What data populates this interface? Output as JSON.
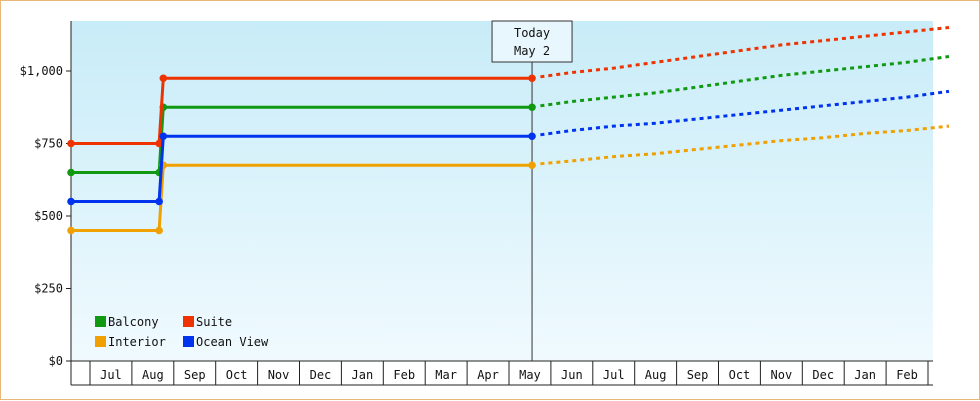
{
  "chart_data": {
    "type": "line",
    "title": "",
    "xlabel": "",
    "ylabel": "",
    "ylim": [
      0,
      1150
    ],
    "y_ticks": [
      {
        "value": 0,
        "label": "$0"
      },
      {
        "value": 250,
        "label": "$250"
      },
      {
        "value": 500,
        "label": "$500"
      },
      {
        "value": 750,
        "label": "$750"
      },
      {
        "value": 1000,
        "label": "$1,000"
      }
    ],
    "x_months": [
      "Jul",
      "Aug",
      "Sep",
      "Oct",
      "Nov",
      "Dec",
      "Jan",
      "Feb",
      "Mar",
      "Apr",
      "May",
      "Jun",
      "Jul",
      "Aug",
      "Sep",
      "Oct",
      "Nov",
      "Dec",
      "Jan",
      "Feb"
    ],
    "today": {
      "line1": "Today",
      "line2": "May 2",
      "x": 10.05
    },
    "x_range": [
      -0.45,
      20.0
    ],
    "legend": {
      "placement": "bottom-left"
    },
    "background": {
      "top": "#c8ecf8",
      "bottom": "#f0fafe"
    },
    "series": [
      {
        "name": "Balcony",
        "color": "#119911",
        "history": [
          [
            -0.45,
            650
          ],
          [
            1.15,
            650
          ],
          [
            1.25,
            875
          ],
          [
            10.05,
            875
          ]
        ],
        "markers": [
          [
            -0.45,
            650
          ],
          [
            1.15,
            650
          ],
          [
            1.25,
            875
          ],
          [
            10.05,
            875
          ]
        ],
        "forecast": [
          [
            10.25,
            880
          ],
          [
            11,
            895
          ],
          [
            12,
            910
          ],
          [
            13,
            925
          ],
          [
            14,
            945
          ],
          [
            15,
            965
          ],
          [
            16,
            985
          ],
          [
            17,
            1000
          ],
          [
            18,
            1015
          ],
          [
            19,
            1030
          ],
          [
            20,
            1050
          ]
        ]
      },
      {
        "name": "Suite",
        "color": "#ee3300",
        "history": [
          [
            -0.45,
            750
          ],
          [
            1.15,
            750
          ],
          [
            1.25,
            975
          ],
          [
            10.05,
            975
          ]
        ],
        "markers": [
          [
            -0.45,
            750
          ],
          [
            1.15,
            750
          ],
          [
            1.25,
            975
          ],
          [
            10.05,
            975
          ]
        ],
        "forecast": [
          [
            10.25,
            980
          ],
          [
            11,
            995
          ],
          [
            12,
            1010
          ],
          [
            13,
            1030
          ],
          [
            14,
            1050
          ],
          [
            15,
            1070
          ],
          [
            16,
            1090
          ],
          [
            17,
            1105
          ],
          [
            18,
            1120
          ],
          [
            19,
            1135
          ],
          [
            20,
            1150
          ]
        ]
      },
      {
        "name": "Interior",
        "color": "#f0a000",
        "history": [
          [
            -0.45,
            450
          ],
          [
            1.15,
            450
          ],
          [
            1.25,
            675
          ],
          [
            10.05,
            675
          ]
        ],
        "markers": [
          [
            -0.45,
            450
          ],
          [
            1.15,
            450
          ],
          [
            1.25,
            675
          ],
          [
            10.05,
            675
          ]
        ],
        "forecast": [
          [
            10.25,
            680
          ],
          [
            11,
            690
          ],
          [
            12,
            705
          ],
          [
            13,
            715
          ],
          [
            14,
            730
          ],
          [
            15,
            745
          ],
          [
            16,
            760
          ],
          [
            17,
            770
          ],
          [
            18,
            785
          ],
          [
            19,
            795
          ],
          [
            20,
            810
          ]
        ]
      },
      {
        "name": "Ocean View",
        "color": "#0033ee",
        "history": [
          [
            -0.45,
            550
          ],
          [
            1.15,
            550
          ],
          [
            1.25,
            775
          ],
          [
            10.05,
            775
          ]
        ],
        "markers": [
          [
            -0.45,
            550
          ],
          [
            1.15,
            550
          ],
          [
            1.25,
            775
          ],
          [
            10.05,
            775
          ]
        ],
        "forecast": [
          [
            10.25,
            780
          ],
          [
            11,
            795
          ],
          [
            12,
            810
          ],
          [
            13,
            820
          ],
          [
            14,
            835
          ],
          [
            15,
            850
          ],
          [
            16,
            865
          ],
          [
            17,
            880
          ],
          [
            18,
            895
          ],
          [
            19,
            910
          ],
          [
            20,
            930
          ]
        ]
      }
    ]
  }
}
